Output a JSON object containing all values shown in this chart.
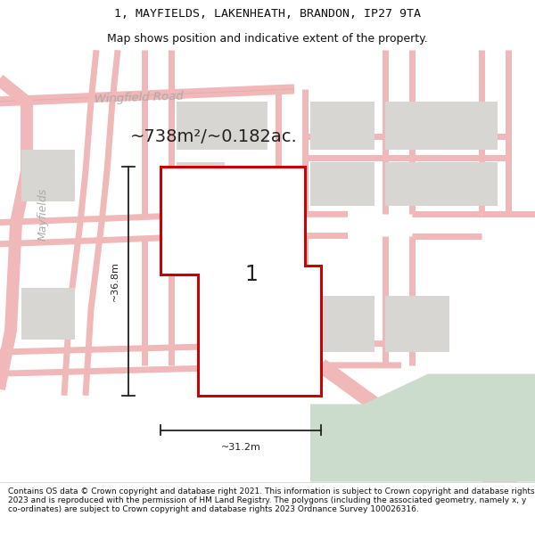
{
  "title_line1": "1, MAYFIELDS, LAKENHEATH, BRANDON, IP27 9TA",
  "title_line2": "Map shows position and indicative extent of the property.",
  "area_text": "~738m²/~0.182ac.",
  "label_1": "1",
  "dim_height": "~36.8m",
  "dim_width": "~31.2m",
  "road_label_1": "Wingfield Road",
  "road_label_2": "Mayfields",
  "footer_text": "Contains OS data © Crown copyright and database right 2021. This information is subject to Crown copyright and database rights 2023 and is reproduced with the permission of HM Land Registry. The polygons (including the associated geometry, namely x, y co-ordinates) are subject to Crown copyright and database rights 2023 Ordnance Survey 100026316.",
  "bg_color": "#ffffff",
  "map_bg": "#f7f5f2",
  "road_color": "#f0b8b8",
  "road_lw": 0.8,
  "building_color": "#d8d6d2",
  "building_edge": "none",
  "green_color": "#ccdccc",
  "plot_fill": "#ffffff",
  "plot_edge": "#cc0000",
  "plot_lw": 2.2,
  "dim_color": "#222222",
  "text_color": "#222222",
  "road_text_color": "#aaaaaa",
  "title_fontsize": 9.5,
  "subtitle_fontsize": 9,
  "area_fontsize": 14,
  "dim_fontsize": 8,
  "label_fontsize": 17,
  "road_label_fontsize": 9.5,
  "mayfields_fontsize": 9
}
